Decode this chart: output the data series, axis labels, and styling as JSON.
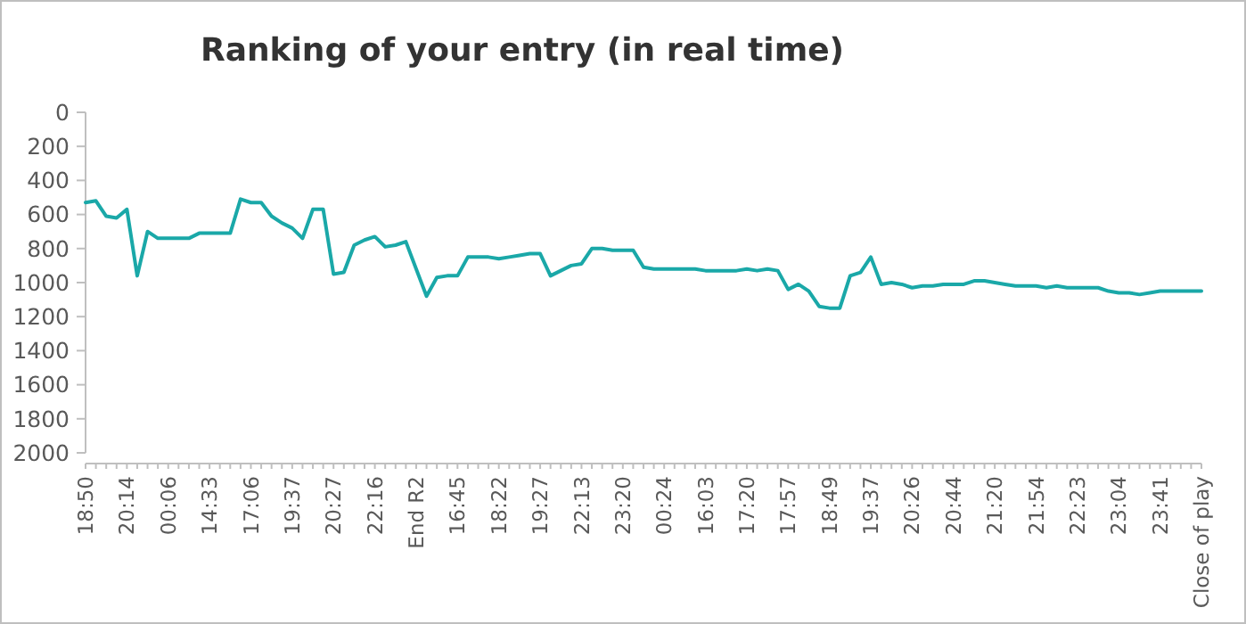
{
  "chart_data": {
    "type": "line",
    "title": "Ranking of your entry (in real time)",
    "categories": [
      "18:50",
      null,
      null,
      null,
      "20:14",
      null,
      null,
      null,
      "00:06",
      null,
      null,
      null,
      "14:33",
      null,
      null,
      null,
      "17:06",
      null,
      null,
      null,
      "19:37",
      null,
      null,
      null,
      "20:27",
      null,
      null,
      null,
      "22:16",
      null,
      null,
      null,
      "End R2",
      null,
      null,
      null,
      "16:45",
      null,
      null,
      null,
      "18:22",
      null,
      null,
      null,
      "19:27",
      null,
      null,
      null,
      "22:13",
      null,
      null,
      null,
      "23:20",
      null,
      null,
      null,
      "00:24",
      null,
      null,
      null,
      "16:03",
      null,
      null,
      null,
      "17:20",
      null,
      null,
      null,
      "17:57",
      null,
      null,
      null,
      "18:49",
      null,
      null,
      null,
      "19:37",
      null,
      null,
      null,
      "20:26",
      null,
      null,
      null,
      "20:44",
      null,
      null,
      null,
      "21:20",
      null,
      null,
      null,
      "21:54",
      null,
      null,
      null,
      "22:23",
      null,
      null,
      null,
      "23:04",
      null,
      null,
      null,
      "23:41",
      null,
      null,
      null,
      "Close of play"
    ],
    "series": [
      {
        "color": "#1aa8a8",
        "values": [
          530,
          520,
          610,
          620,
          570,
          960,
          700,
          740,
          740,
          740,
          740,
          710,
          710,
          710,
          710,
          510,
          530,
          530,
          610,
          650,
          680,
          740,
          570,
          570,
          950,
          940,
          780,
          750,
          730,
          790,
          780,
          760,
          920,
          1080,
          970,
          960,
          960,
          850,
          850,
          850,
          860,
          850,
          840,
          830,
          830,
          960,
          930,
          900,
          890,
          800,
          800,
          810,
          810,
          810,
          910,
          920,
          920,
          920,
          920,
          920,
          930,
          930,
          930,
          930,
          920,
          930,
          920,
          930,
          1040,
          1010,
          1050,
          1140,
          1150,
          1150,
          960,
          940,
          850,
          1010,
          1000,
          1010,
          1030,
          1020,
          1020,
          1010,
          1010,
          1010,
          990,
          990,
          1000,
          1010,
          1020,
          1020,
          1020,
          1030,
          1020,
          1030,
          1030,
          1030,
          1030,
          1050,
          1060,
          1060,
          1070,
          1060,
          1050,
          1050,
          1050,
          1050,
          1050
        ]
      }
    ],
    "ylim": [
      2000,
      0
    ],
    "yticks": [
      0,
      200,
      400,
      600,
      800,
      1000,
      1200,
      1400,
      1600,
      1800,
      2000
    ],
    "marker": "none",
    "line_style": "solid"
  }
}
